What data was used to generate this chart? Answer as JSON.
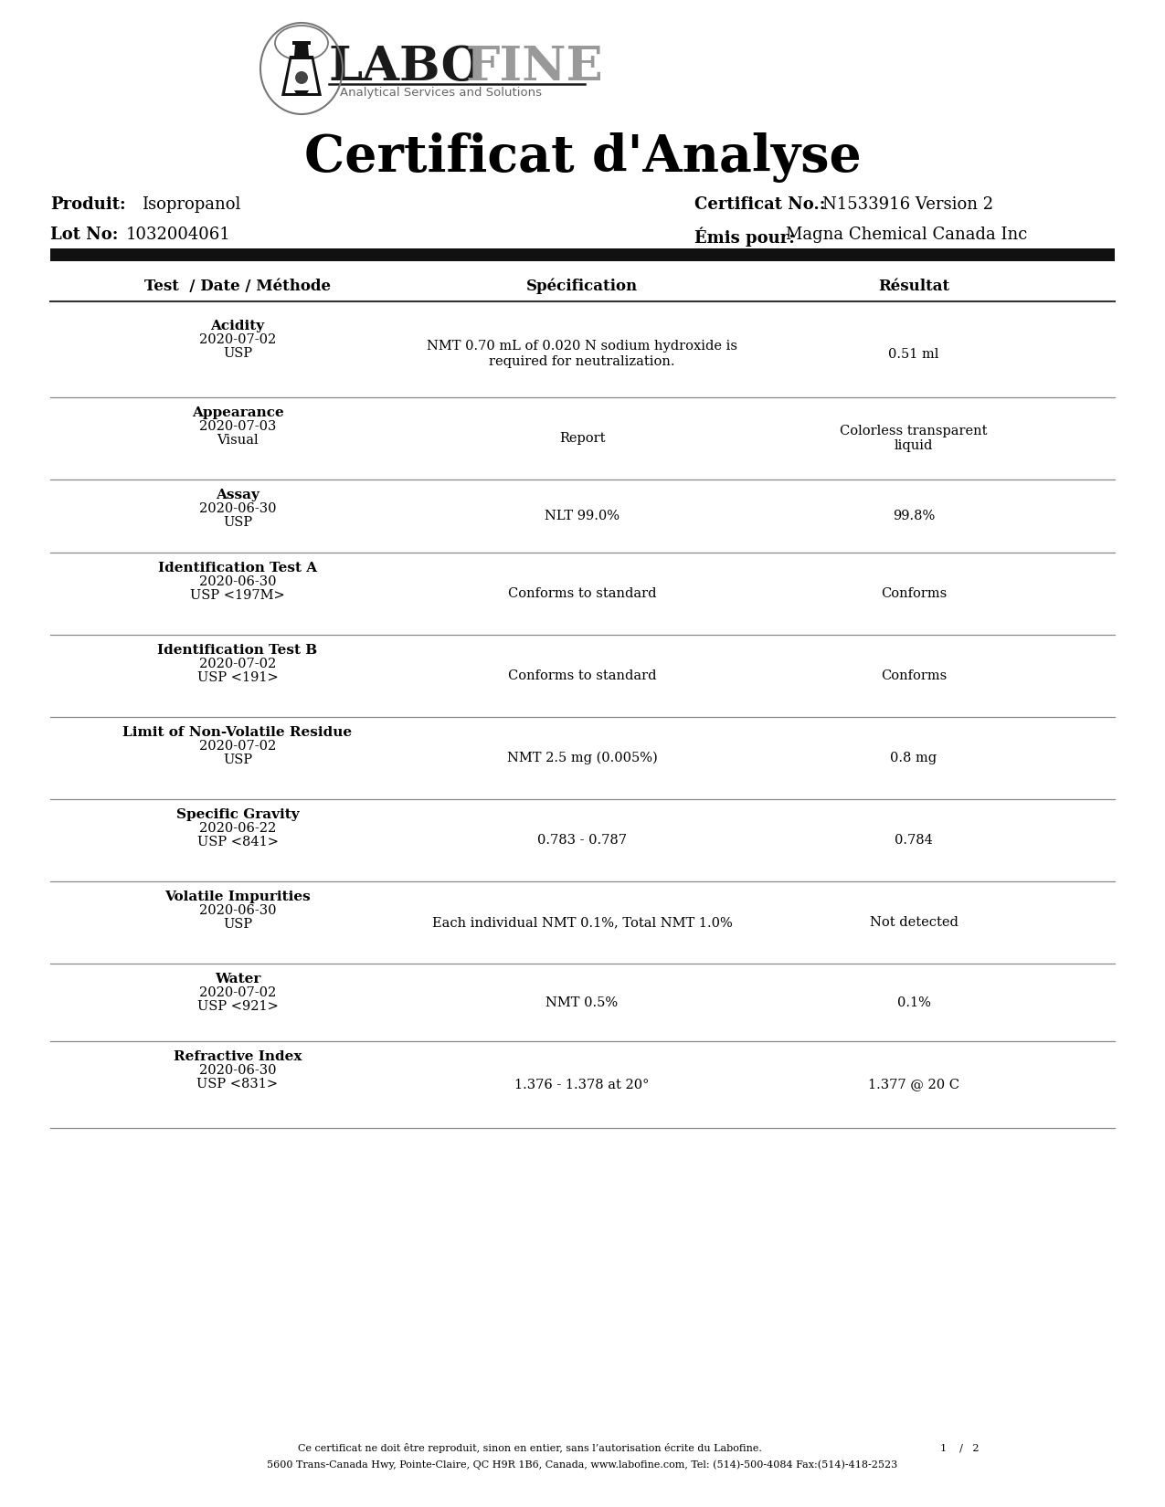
{
  "title": "Certificat d'Analyse",
  "produit_label": "Produit:",
  "produit_value": "Isopropanol",
  "lot_label": "Lot No:",
  "lot_value": "1032004061",
  "cert_label": "Certificat No.:",
  "cert_value": "N1533916 Version 2",
  "emis_label": "Émis pour:",
  "emis_value": "Magna Chemical Canada Inc",
  "col_headers": [
    "Test  / Date / Méthode",
    "Spécification",
    "Résultat"
  ],
  "rows": [
    {
      "test": "Acidity",
      "date": "2020-07-02",
      "method": "USP",
      "spec": "NMT 0.70 mL of 0.020 N sodium hydroxide is\nrequired for neutralization.",
      "result": "0.51 ml"
    },
    {
      "test": "Appearance",
      "date": "2020-07-03",
      "method": "Visual",
      "spec": "Report",
      "result": "Colorless transparent\nliquid"
    },
    {
      "test": "Assay",
      "date": "2020-06-30",
      "method": "USP",
      "spec": "NLT 99.0%",
      "result": "99.8%"
    },
    {
      "test": "Identification Test A",
      "date": "2020-06-30",
      "method": "USP <197M>",
      "spec": "Conforms to standard",
      "result": "Conforms"
    },
    {
      "test": "Identification Test B",
      "date": "2020-07-02",
      "method": "USP <191>",
      "spec": "Conforms to standard",
      "result": "Conforms"
    },
    {
      "test": "Limit of Non-Volatile Residue",
      "date": "2020-07-02",
      "method": "USP",
      "spec": "NMT 2.5 mg (0.005%)",
      "result": "0.8 mg"
    },
    {
      "test": "Specific Gravity",
      "date": "2020-06-22",
      "method": "USP <841>",
      "spec": "0.783 - 0.787",
      "result": "0.784"
    },
    {
      "test": "Volatile Impurities",
      "date": "2020-06-30",
      "method": "USP",
      "spec": "Each individual NMT 0.1%, Total NMT 1.0%",
      "result": "Not detected"
    },
    {
      "test": "Water",
      "date": "2020-07-02",
      "method": "USP <921>",
      "spec": "NMT 0.5%",
      "result": "0.1%"
    },
    {
      "test": "Refractive Index",
      "date": "2020-06-30",
      "method": "USP <831>",
      "spec": "1.376 - 1.378 at 20°",
      "result": "1.377 @ 20 C"
    }
  ],
  "footer_line1": "Ce certificat ne doit être reproduit, sinon en entier, sans l’autorisation écrite du Labofine.",
  "footer_page": "1    /   2",
  "footer_line2": "5600 Trans-Canada Hwy, Pointe-Claire, QC H9R 1B6, Canada, www.labofine.com, Tel: (514)-500-4084 Fax:(514)-418-2523",
  "bg_color": "#ffffff",
  "text_color": "#000000",
  "header_bar_color": "#111111",
  "divider_color": "#666666"
}
